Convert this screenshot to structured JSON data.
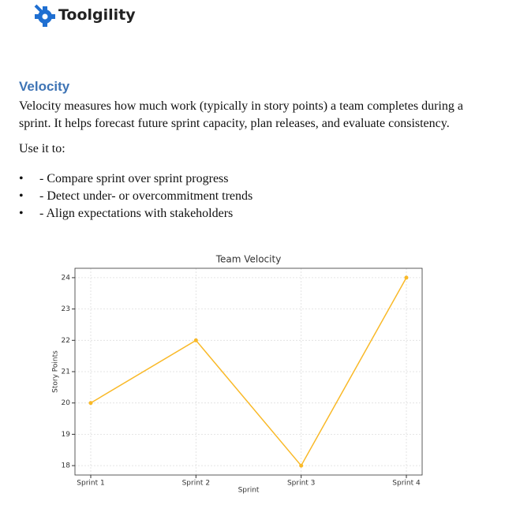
{
  "header": {
    "brand": "Toolgility"
  },
  "section": {
    "heading": "Velocity",
    "paragraph": "Velocity measures how much work (typically in story points) a team completes during a sprint. It helps forecast future sprint capacity, plan releases, and evaluate consistency.",
    "lead": "Use it to:",
    "bullets": [
      "- Compare sprint over sprint progress",
      "- Detect under- or overcommitment trends",
      "- Align expectations with stakeholders"
    ]
  },
  "chart_data": {
    "type": "line",
    "title": "Team Velocity",
    "x_label": "Sprint",
    "y_label": "Story Points",
    "categories": [
      "Sprint 1",
      "Sprint 2",
      "Sprint 3",
      "Sprint 4"
    ],
    "values": [
      20,
      22,
      18,
      24
    ],
    "color": "#f9b928",
    "ylim": [
      17.7,
      24.3
    ],
    "yticks": [
      18,
      19,
      20,
      21,
      22,
      23,
      24
    ],
    "grid": true
  }
}
